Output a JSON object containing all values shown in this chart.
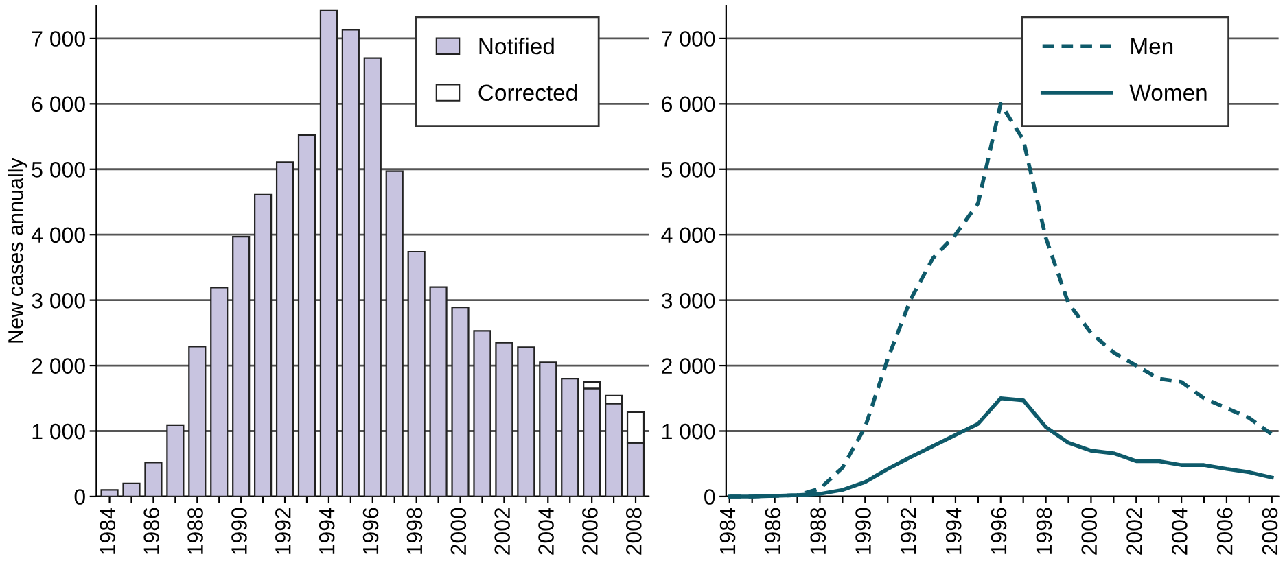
{
  "chart_data": [
    {
      "type": "bar",
      "stacked": true,
      "ylabel": "New cases annually",
      "categories": [
        "1984",
        null,
        "1986",
        null,
        "1988",
        null,
        "1990",
        null,
        "1992",
        null,
        "1994",
        null,
        "1996",
        null,
        "1998",
        null,
        "2000",
        null,
        "2002",
        null,
        "2004",
        null,
        "2006",
        null,
        "2008"
      ],
      "series": [
        {
          "name": "Notified",
          "color": "#c8c4e0",
          "values": [
            100,
            200,
            520,
            1090,
            2290,
            3190,
            3970,
            4610,
            5110,
            5520,
            7430,
            7130,
            6700,
            4970,
            3740,
            3200,
            2890,
            2530,
            2350,
            2280,
            2050,
            1800,
            1650,
            1420,
            820
          ]
        },
        {
          "name": "Corrected",
          "color": "#ffffff",
          "values": [
            null,
            null,
            null,
            null,
            null,
            null,
            null,
            null,
            null,
            null,
            null,
            null,
            null,
            null,
            null,
            null,
            null,
            null,
            null,
            null,
            null,
            null,
            100,
            120,
            470
          ]
        }
      ],
      "ylim": [
        0,
        7500
      ],
      "yticks": [
        0,
        {
          "value": 1000,
          "label": "1 000"
        },
        {
          "value": 2000,
          "label": "2 000"
        },
        {
          "value": 3000,
          "label": "3 000"
        },
        {
          "value": 4000,
          "label": "4 000"
        },
        {
          "value": 5000,
          "label": "5 000"
        },
        {
          "value": 6000,
          "label": "6 000"
        },
        {
          "value": 7000,
          "label": "7 000"
        }
      ],
      "grid": "y",
      "legend": "top right"
    },
    {
      "type": "line",
      "x": [
        1984,
        1985,
        1986,
        1987,
        1988,
        1989,
        1990,
        1991,
        1992,
        1993,
        1994,
        1995,
        1996,
        1997,
        1998,
        1999,
        2000,
        2001,
        2002,
        2003,
        2004,
        2005,
        2006,
        2007,
        2008
      ],
      "series": [
        {
          "name": "Men",
          "color": "#0e5a6a",
          "line_style": "dashed",
          "values": [
            0,
            0,
            10,
            20,
            120,
            440,
            1060,
            2100,
            3000,
            3640,
            4000,
            4480,
            6000,
            5450,
            3950,
            2950,
            2500,
            2200,
            2000,
            1800,
            1750,
            1500,
            1350,
            1200,
            950
          ]
        },
        {
          "name": "Women",
          "color": "#0e5a6a",
          "line_style": "solid",
          "values": [
            0,
            0,
            10,
            20,
            40,
            100,
            220,
            420,
            600,
            770,
            940,
            1110,
            1500,
            1470,
            1060,
            820,
            700,
            660,
            540,
            540,
            480,
            480,
            420,
            370,
            290
          ]
        }
      ],
      "xlim": [
        1983.85,
        2008.3
      ],
      "xticks": [
        1984,
        {
          "value": 1985,
          "label": null
        },
        1986,
        {
          "value": 1987,
          "label": null
        },
        1988,
        {
          "value": 1989,
          "label": null
        },
        1990,
        {
          "value": 1991,
          "label": null
        },
        1992,
        {
          "value": 1993,
          "label": null
        },
        1994,
        {
          "value": 1995,
          "label": null
        },
        1996,
        {
          "value": 1997,
          "label": null
        },
        1998,
        {
          "value": 1999,
          "label": null
        },
        2000,
        {
          "value": 2001,
          "label": null
        },
        2002,
        {
          "value": 2003,
          "label": null
        },
        2004,
        {
          "value": 2005,
          "label": null
        },
        2006,
        {
          "value": 2007,
          "label": null
        },
        2008
      ],
      "ylim": [
        0,
        7500
      ],
      "yticks": [
        0,
        {
          "value": 1000,
          "label": "1 000"
        },
        {
          "value": 2000,
          "label": "2 000"
        },
        {
          "value": 3000,
          "label": "3 000"
        },
        {
          "value": 4000,
          "label": "4 000"
        },
        {
          "value": 5000,
          "label": "5 000"
        },
        {
          "value": 6000,
          "label": "6 000"
        },
        {
          "value": 7000,
          "label": "7 000"
        }
      ],
      "grid": "y",
      "legend": "top right",
      "marker": "none"
    }
  ]
}
